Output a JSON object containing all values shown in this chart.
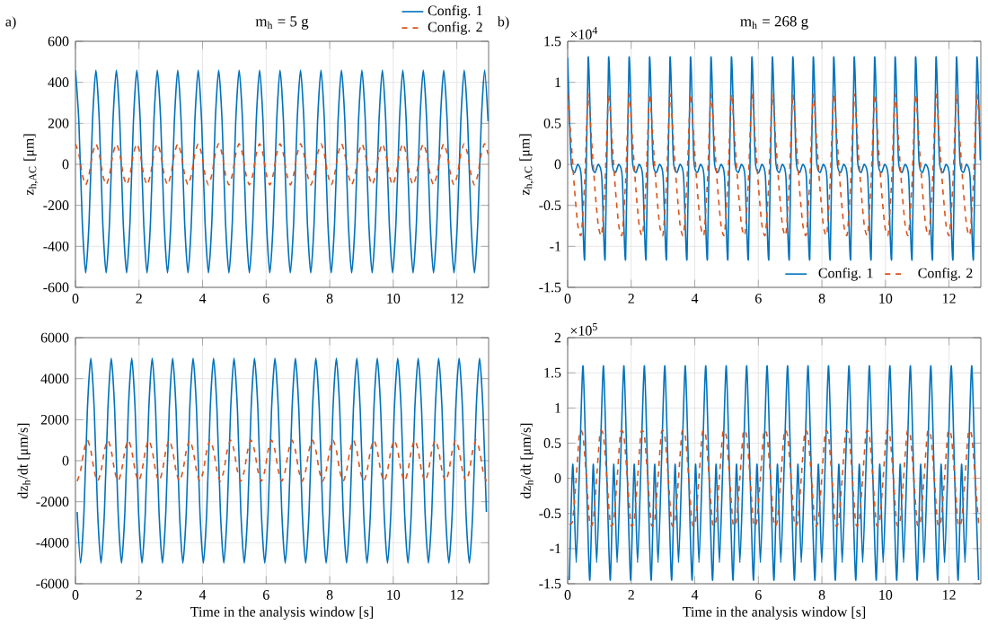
{
  "chart_data": [
    {
      "type": "line",
      "title": "m$_{h}$ = 5 g",
      "ylabel": "z$_{h,AC}$ [μm]",
      "annotations": [
        "a)"
      ],
      "xlim": [
        0,
        13
      ],
      "ylim": [
        -600,
        600
      ],
      "xticks": [
        0,
        2,
        4,
        6,
        8,
        10,
        12
      ],
      "yticks": [
        -600,
        -400,
        -200,
        0,
        200,
        400,
        600
      ],
      "grid": true,
      "legend": "top right",
      "x": [
        0,
        0.107,
        0.215,
        0.322,
        0.429,
        0.537,
        0.644,
        0.751,
        0.858,
        0.966,
        1.073,
        1.18,
        1.288,
        1.395,
        1.502,
        1.61,
        1.717,
        1.824,
        1.931,
        2.039,
        2.146,
        2.253,
        2.361,
        2.468,
        2.575,
        2.683,
        2.79,
        2.897,
        3.004,
        3.112,
        3.219,
        3.326,
        3.434,
        3.541,
        3.648,
        3.756,
        3.863,
        3.97,
        4.077,
        4.185,
        4.292,
        4.399,
        4.507,
        4.614,
        4.721,
        4.829,
        4.936,
        5.043,
        5.15,
        5.258,
        5.365,
        5.472,
        5.58,
        5.687,
        5.794,
        5.902,
        6.009,
        6.116,
        6.223,
        6.331,
        6.438,
        6.545,
        6.653,
        6.76,
        6.867,
        6.975,
        7.082,
        7.189,
        7.296,
        7.404,
        7.511,
        7.618,
        7.726,
        7.833,
        7.94,
        8.048,
        8.155,
        8.262,
        8.369,
        8.477,
        8.584,
        8.691,
        8.799,
        8.906,
        9.013,
        9.121,
        9.228,
        9.335,
        9.442,
        9.55,
        9.657,
        9.764,
        9.872,
        9.979,
        10.086,
        10.194,
        10.301,
        10.408,
        10.515,
        10.623,
        10.73,
        10.837,
        10.945,
        11.052,
        11.159,
        11.267,
        11.374,
        11.481,
        11.588,
        11.696,
        11.803,
        11.91,
        12.018,
        12.125,
        12.232,
        12.34,
        12.447,
        12.554,
        12.661,
        12.769,
        12.876,
        12.983
      ],
      "series": [
        {
          "name": "Config. 1",
          "color": "#0072bd",
          "line_style": "solid",
          "values": [
            460,
            210,
            -280,
            -530,
            -280,
            210,
            460,
            210,
            -280,
            -530,
            -280,
            210,
            460,
            210,
            -280,
            -530,
            -280,
            210,
            460,
            210,
            -280,
            -530,
            -280,
            210,
            460,
            210,
            -280,
            -530,
            -280,
            210,
            460,
            210,
            -280,
            -530,
            -280,
            210,
            460,
            210,
            -280,
            -530,
            -280,
            210,
            460,
            210,
            -280,
            -530,
            -280,
            210,
            460,
            210,
            -280,
            -530,
            -280,
            210,
            460,
            210,
            -280,
            -530,
            -280,
            210,
            460,
            210,
            -280,
            -530,
            -280,
            210,
            460,
            210,
            -280,
            -530,
            -280,
            210,
            460,
            210,
            -280,
            -530,
            -280,
            210,
            460,
            210,
            -280,
            -530,
            -280,
            210,
            460,
            210,
            -280,
            -530,
            -280,
            210,
            460,
            210,
            -280,
            -530,
            -280,
            210,
            460,
            210,
            -280,
            -530,
            -280,
            210,
            460,
            210,
            -280,
            -530,
            -280,
            210,
            460,
            210,
            -280,
            -530,
            -280,
            210,
            460,
            210,
            -280,
            -530,
            -280,
            210,
            460,
            210
          ]
        },
        {
          "name": "Config. 2",
          "color": "#d95319",
          "line_style": "dashed",
          "values": [
            100,
            50,
            -50,
            -100,
            -50,
            50,
            100,
            50,
            -50,
            -100,
            -50,
            50,
            100,
            50,
            -50,
            -100,
            -50,
            50,
            100,
            50,
            -50,
            -100,
            -50,
            50,
            100,
            50,
            -50,
            -100,
            -50,
            50,
            100,
            50,
            -50,
            -100,
            -50,
            50,
            100,
            50,
            -50,
            -100,
            -50,
            50,
            100,
            50,
            -50,
            -100,
            -50,
            50,
            100,
            50,
            -50,
            -100,
            -50,
            50,
            100,
            50,
            -50,
            -100,
            -50,
            50,
            100,
            50,
            -50,
            -100,
            -50,
            50,
            100,
            50,
            -50,
            -100,
            -50,
            50,
            100,
            50,
            -50,
            -100,
            -50,
            50,
            100,
            50,
            -50,
            -100,
            -50,
            50,
            100,
            50,
            -50,
            -100,
            -50,
            50,
            100,
            50,
            -50,
            -100,
            -50,
            50,
            100,
            50,
            -50,
            -100,
            -50,
            50,
            100,
            50,
            -50,
            -100,
            -50,
            50,
            100,
            50,
            -50,
            -100,
            -50,
            50,
            100,
            50,
            -50,
            -100,
            -50,
            50,
            100,
            50
          ]
        }
      ]
    },
    {
      "type": "line",
      "title": "m$_{h}$ = 268 g",
      "ylabel": "z$_{h,AC}$ [μm]",
      "annotations": [
        "b)",
        "×10$^{4}$"
      ],
      "xlim": [
        0,
        13
      ],
      "ylim": [
        -1.5,
        1.5
      ],
      "xticks": [
        0,
        2,
        4,
        6,
        8,
        10,
        12
      ],
      "yticks": [
        -1.5,
        -1,
        -0.5,
        0,
        0.5,
        1,
        1.5
      ],
      "grid": true,
      "legend": "bottom right",
      "x": [
        0,
        0.107,
        0.215,
        0.322,
        0.429,
        0.537,
        0.644,
        0.751,
        0.858,
        0.966,
        1.073,
        1.18,
        1.288,
        1.395,
        1.502,
        1.61,
        1.717,
        1.824,
        1.931,
        2.039,
        2.146,
        2.253,
        2.361,
        2.468,
        2.575,
        2.683,
        2.79,
        2.897,
        3.004,
        3.112,
        3.219,
        3.326,
        3.434,
        3.541,
        3.648,
        3.756,
        3.863,
        3.97,
        4.077,
        4.185,
        4.292,
        4.399,
        4.507,
        4.614,
        4.721,
        4.829,
        4.936,
        5.043,
        5.15,
        5.258,
        5.365,
        5.472,
        5.58,
        5.687,
        5.794,
        5.902,
        6.009,
        6.116,
        6.223,
        6.331,
        6.438,
        6.545,
        6.653,
        6.76,
        6.867,
        6.975,
        7.082,
        7.189,
        7.296,
        7.404,
        7.511,
        7.618,
        7.726,
        7.833,
        7.94,
        8.048,
        8.155,
        8.262,
        8.369,
        8.477,
        8.584,
        8.691,
        8.799,
        8.906,
        9.013,
        9.121,
        9.228,
        9.335,
        9.442,
        9.55,
        9.657,
        9.764,
        9.872,
        9.979,
        10.086,
        10.194,
        10.301,
        10.408,
        10.515,
        10.623,
        10.73,
        10.837,
        10.945,
        11.052,
        11.159,
        11.267,
        11.374,
        11.481,
        11.588,
        11.696,
        11.803,
        11.91,
        12.018,
        12.125,
        12.232,
        12.34,
        12.447,
        12.554,
        12.661,
        12.769,
        12.876,
        12.983
      ],
      "series": [
        {
          "name": "Config. 1",
          "color": "#0072bd",
          "line_style": "solid",
          "values": [
            1.3,
            0.05,
            -0.1,
            0,
            -0.15,
            -1.15,
            1.3,
            0.05,
            -0.1,
            0,
            -0.15,
            -1.15,
            1.3,
            0.05,
            -0.1,
            0,
            -0.15,
            -1.15,
            1.3,
            0.05,
            -0.1,
            0,
            -0.15,
            -1.15,
            1.3,
            0.05,
            -0.1,
            0,
            -0.15,
            -1.15,
            1.3,
            0.05,
            -0.1,
            0,
            -0.15,
            -1.15,
            1.3,
            0.05,
            -0.1,
            0,
            -0.15,
            -1.15,
            1.3,
            0.05,
            -0.1,
            0,
            -0.15,
            -1.15,
            1.3,
            0.05,
            -0.1,
            0,
            -0.15,
            -1.15,
            1.3,
            0.05,
            -0.1,
            0,
            -0.15,
            -1.15,
            1.3,
            0.05,
            -0.1,
            0,
            -0.15,
            -1.15,
            1.3,
            0.05,
            -0.1,
            0,
            -0.15,
            -1.15,
            1.3,
            0.05,
            -0.1,
            0,
            -0.15,
            -1.15,
            1.3,
            0.05,
            -0.1,
            0,
            -0.15,
            -1.15,
            1.3,
            0.05,
            -0.1,
            0,
            -0.15,
            -1.15,
            1.3,
            0.05,
            -0.1,
            0,
            -0.15,
            -1.15,
            1.3,
            0.05,
            -0.1,
            0,
            -0.15,
            -1.15,
            1.3,
            0.05,
            -0.1,
            0,
            -0.15,
            -1.15,
            1.3,
            0.05,
            -0.1,
            0,
            -0.15,
            -1.15,
            1.3,
            0.05,
            -0.1,
            0,
            -0.15,
            -1.15,
            1.3,
            0.05
          ]
        },
        {
          "name": "Config. 2",
          "color": "#d95319",
          "line_style": "dashed",
          "values": [
            0.85,
            0.3,
            -0.3,
            -0.75,
            -0.85,
            -0.2,
            0.85,
            0.3,
            -0.3,
            -0.75,
            -0.85,
            -0.2,
            0.85,
            0.3,
            -0.3,
            -0.75,
            -0.85,
            -0.2,
            0.85,
            0.3,
            -0.3,
            -0.75,
            -0.85,
            -0.2,
            0.85,
            0.3,
            -0.3,
            -0.75,
            -0.85,
            -0.2,
            0.85,
            0.3,
            -0.3,
            -0.75,
            -0.85,
            -0.2,
            0.85,
            0.3,
            -0.3,
            -0.75,
            -0.85,
            -0.2,
            0.85,
            0.3,
            -0.3,
            -0.75,
            -0.85,
            -0.2,
            0.85,
            0.3,
            -0.3,
            -0.75,
            -0.85,
            -0.2,
            0.85,
            0.3,
            -0.3,
            -0.75,
            -0.85,
            -0.2,
            0.85,
            0.3,
            -0.3,
            -0.75,
            -0.85,
            -0.2,
            0.85,
            0.3,
            -0.3,
            -0.75,
            -0.85,
            -0.2,
            0.85,
            0.3,
            -0.3,
            -0.75,
            -0.85,
            -0.2,
            0.85,
            0.3,
            -0.3,
            -0.75,
            -0.85,
            -0.2,
            0.85,
            0.3,
            -0.3,
            -0.75,
            -0.85,
            -0.2,
            0.85,
            0.3,
            -0.3,
            -0.75,
            -0.85,
            -0.2,
            0.85,
            0.3,
            -0.3,
            -0.75,
            -0.85,
            -0.2,
            0.85,
            0.3,
            -0.3,
            -0.75,
            -0.85,
            -0.2,
            0.85,
            0.3,
            -0.3,
            -0.75,
            -0.85,
            -0.2,
            0.85,
            0.3,
            -0.3,
            -0.75,
            -0.85,
            -0.2,
            0.85,
            0.3
          ]
        }
      ]
    },
    {
      "type": "line",
      "xlabel": "Time in the analysis window [s]",
      "ylabel": "dz$_{h}$/dt [μm/s]",
      "xlim": [
        0,
        13
      ],
      "ylim": [
        -6000,
        6000
      ],
      "xticks": [
        0,
        2,
        4,
        6,
        8,
        10,
        12
      ],
      "yticks": [
        -6000,
        -4000,
        -2000,
        0,
        2000,
        4000,
        6000
      ],
      "grid": true,
      "x": [
        0.054,
        0.161,
        0.269,
        0.376,
        0.483,
        0.591,
        0.698,
        0.805,
        0.912,
        1.02,
        1.127,
        1.234,
        1.342,
        1.449,
        1.556,
        1.664,
        1.771,
        1.878,
        1.985,
        2.093,
        2.2,
        2.307,
        2.415,
        2.522,
        2.629,
        2.737,
        2.844,
        2.951,
        3.058,
        3.166,
        3.273,
        3.38,
        3.488,
        3.595,
        3.702,
        3.81,
        3.917,
        4.024,
        4.131,
        4.239,
        4.346,
        4.453,
        4.561,
        4.668,
        4.775,
        4.883,
        4.99,
        5.097,
        5.204,
        5.312,
        5.419,
        5.526,
        5.634,
        5.741,
        5.848,
        5.956,
        6.063,
        6.17,
        6.277,
        6.385,
        6.492,
        6.599,
        6.707,
        6.814,
        6.921,
        7.029,
        7.136,
        7.243,
        7.35,
        7.458,
        7.565,
        7.672,
        7.78,
        7.887,
        7.994,
        8.102,
        8.209,
        8.316,
        8.423,
        8.531,
        8.638,
        8.745,
        8.853,
        8.96,
        9.067,
        9.175,
        9.282,
        9.389,
        9.496,
        9.604,
        9.711,
        9.818,
        9.926,
        10.033,
        10.14,
        10.248,
        10.355,
        10.462,
        10.569,
        10.677,
        10.784,
        10.891,
        10.999,
        11.106,
        11.213,
        11.321,
        11.428,
        11.535,
        11.642,
        11.75,
        11.857,
        11.964,
        12.072,
        12.179,
        12.286,
        12.394,
        12.501,
        12.608,
        12.715,
        12.823,
        12.93
      ],
      "series": [
        {
          "color": "#0072bd",
          "line_style": "solid",
          "values": [
            -2500,
            -5000,
            -2500,
            2500,
            5000,
            2500,
            -2500,
            -5000,
            -2500,
            2500,
            5000,
            2500,
            -2500,
            -5000,
            -2500,
            2500,
            5000,
            2500,
            -2500,
            -5000,
            -2500,
            2500,
            5000,
            2500,
            -2500,
            -5000,
            -2500,
            2500,
            5000,
            2500,
            -2500,
            -5000,
            -2500,
            2500,
            5000,
            2500,
            -2500,
            -5000,
            -2500,
            2500,
            5000,
            2500,
            -2500,
            -5000,
            -2500,
            2500,
            5000,
            2500,
            -2500,
            -5000,
            -2500,
            2500,
            5000,
            2500,
            -2500,
            -5000,
            -2500,
            2500,
            5000,
            2500,
            -2500,
            -5000,
            -2500,
            2500,
            5000,
            2500,
            -2500,
            -5000,
            -2500,
            2500,
            5000,
            2500,
            -2500,
            -5000,
            -2500,
            2500,
            5000,
            2500,
            -2500,
            -5000,
            -2500,
            2500,
            5000,
            2500,
            -2500,
            -5000,
            -2500,
            2500,
            5000,
            2500,
            -2500,
            -5000,
            -2500,
            2500,
            5000,
            2500,
            -2500,
            -5000,
            -2500,
            2500,
            5000,
            2500,
            -2500,
            -5000,
            -2500,
            2500,
            5000,
            2500,
            -2500,
            -5000,
            -2500,
            2500,
            5000,
            2500,
            -2500,
            -5000,
            -2500,
            2500,
            5000,
            2500,
            -2500
          ]
        },
        {
          "color": "#d95319",
          "line_style": "dashed",
          "values": [
            -1000,
            -500,
            500,
            1000,
            500,
            -500,
            -1000,
            -500,
            500,
            1000,
            500,
            -500,
            -1000,
            -500,
            500,
            1000,
            500,
            -500,
            -1000,
            -500,
            500,
            1000,
            500,
            -500,
            -1000,
            -500,
            500,
            1000,
            500,
            -500,
            -1000,
            -500,
            500,
            1000,
            500,
            -500,
            -1000,
            -500,
            500,
            1000,
            500,
            -500,
            -1000,
            -500,
            500,
            1000,
            500,
            -500,
            -1000,
            -500,
            500,
            1000,
            500,
            -500,
            -1000,
            -500,
            500,
            1000,
            500,
            -500,
            -1000,
            -500,
            500,
            1000,
            500,
            -500,
            -1000,
            -500,
            500,
            1000,
            500,
            -500,
            -1000,
            -500,
            500,
            1000,
            500,
            -500,
            -1000,
            -500,
            500,
            1000,
            500,
            -500,
            -1000,
            -500,
            500,
            1000,
            500,
            -500,
            -1000,
            -500,
            500,
            1000,
            500,
            -500,
            -1000,
            -500,
            500,
            1000,
            500,
            -500,
            -1000,
            -500,
            500,
            1000,
            500,
            -500,
            -1000,
            -500,
            500,
            1000,
            500,
            -500,
            -1000,
            -500,
            500,
            1000,
            500,
            -500,
            -1000
          ]
        }
      ]
    },
    {
      "type": "line",
      "xlabel": "Time in the analysis window [s]",
      "ylabel": "dz$_{h}$/dt [μm/s]",
      "annotations": [
        "×10$^{5}$"
      ],
      "xlim": [
        0,
        13
      ],
      "ylim": [
        -1.5,
        2
      ],
      "xticks": [
        0,
        2,
        4,
        6,
        8,
        10,
        12
      ],
      "yticks": [
        -1.5,
        -1,
        -0.5,
        0,
        0.5,
        1,
        1.5,
        2
      ],
      "grid": true,
      "x": [
        0.054,
        0.161,
        0.269,
        0.376,
        0.483,
        0.591,
        0.698,
        0.805,
        0.912,
        1.02,
        1.127,
        1.234,
        1.342,
        1.449,
        1.556,
        1.664,
        1.771,
        1.878,
        1.985,
        2.093,
        2.2,
        2.307,
        2.415,
        2.522,
        2.629,
        2.737,
        2.844,
        2.951,
        3.058,
        3.166,
        3.273,
        3.38,
        3.488,
        3.595,
        3.702,
        3.81,
        3.917,
        4.024,
        4.131,
        4.239,
        4.346,
        4.453,
        4.561,
        4.668,
        4.775,
        4.883,
        4.99,
        5.097,
        5.204,
        5.312,
        5.419,
        5.526,
        5.634,
        5.741,
        5.848,
        5.956,
        6.063,
        6.17,
        6.277,
        6.385,
        6.492,
        6.599,
        6.707,
        6.814,
        6.921,
        7.029,
        7.136,
        7.243,
        7.35,
        7.458,
        7.565,
        7.672,
        7.78,
        7.887,
        7.994,
        8.102,
        8.209,
        8.316,
        8.423,
        8.531,
        8.638,
        8.745,
        8.853,
        8.96,
        9.067,
        9.175,
        9.282,
        9.389,
        9.496,
        9.604,
        9.711,
        9.818,
        9.926,
        10.033,
        10.14,
        10.248,
        10.355,
        10.462,
        10.569,
        10.677,
        10.784,
        10.891,
        10.999,
        11.106,
        11.213,
        11.321,
        11.428,
        11.535,
        11.642,
        11.75,
        11.857,
        11.964,
        12.072,
        12.179,
        12.286,
        12.394,
        12.501,
        12.608,
        12.715,
        12.823,
        12.93
      ],
      "series": [
        {
          "color": "#0072bd",
          "line_style": "solid",
          "values": [
            -1.45,
            0.2,
            -1.2,
            0.2,
            1.6,
            0,
            -1.45,
            0.2,
            -1.2,
            0.2,
            1.6,
            0,
            -1.45,
            0.2,
            -1.2,
            0.2,
            1.6,
            0,
            -1.45,
            0.2,
            -1.2,
            0.2,
            1.6,
            0,
            -1.45,
            0.2,
            -1.2,
            0.2,
            1.6,
            0,
            -1.45,
            0.2,
            -1.2,
            0.2,
            1.6,
            0,
            -1.45,
            0.2,
            -1.2,
            0.2,
            1.6,
            0,
            -1.45,
            0.2,
            -1.2,
            0.2,
            1.6,
            0,
            -1.45,
            0.2,
            -1.2,
            0.2,
            1.6,
            0,
            -1.45,
            0.2,
            -1.2,
            0.2,
            1.6,
            0,
            -1.45,
            0.2,
            -1.2,
            0.2,
            1.6,
            0,
            -1.45,
            0.2,
            -1.2,
            0.2,
            1.6,
            0,
            -1.45,
            0.2,
            -1.2,
            0.2,
            1.6,
            0,
            -1.45,
            0.2,
            -1.2,
            0.2,
            1.6,
            0,
            -1.45,
            0.2,
            -1.2,
            0.2,
            1.6,
            0,
            -1.45,
            0.2,
            -1.2,
            0.2,
            1.6,
            0,
            -1.45,
            0.2,
            -1.2,
            0.2,
            1.6,
            0,
            -1.45,
            0.2,
            -1.2,
            0.2,
            1.6,
            0,
            -1.45,
            0.2,
            -1.2,
            0.2,
            1.6,
            0,
            -1.45,
            0.2,
            -1.2,
            0.2,
            1.6,
            0,
            -1.45
          ]
        },
        {
          "color": "#d95319",
          "line_style": "dashed",
          "values": [
            -0.65,
            -0.6,
            0,
            0.65,
            0.6,
            0,
            -0.65,
            -0.6,
            0,
            0.65,
            0.6,
            0,
            -0.65,
            -0.6,
            0,
            0.65,
            0.6,
            0,
            -0.65,
            -0.6,
            0,
            0.65,
            0.6,
            0,
            -0.65,
            -0.6,
            0,
            0.65,
            0.6,
            0,
            -0.65,
            -0.6,
            0,
            0.65,
            0.6,
            0,
            -0.65,
            -0.6,
            0,
            0.65,
            0.6,
            0,
            -0.65,
            -0.6,
            0,
            0.65,
            0.6,
            0,
            -0.65,
            -0.6,
            0,
            0.65,
            0.6,
            0,
            -0.65,
            -0.6,
            0,
            0.65,
            0.6,
            0,
            -0.65,
            -0.6,
            0,
            0.65,
            0.6,
            0,
            -0.65,
            -0.6,
            0,
            0.65,
            0.6,
            0,
            -0.65,
            -0.6,
            0,
            0.65,
            0.6,
            0,
            -0.65,
            -0.6,
            0,
            0.65,
            0.6,
            0,
            -0.65,
            -0.6,
            0,
            0.65,
            0.6,
            0,
            -0.65,
            -0.6,
            0,
            0.65,
            0.6,
            0,
            -0.65,
            -0.6,
            0,
            0.65,
            0.6,
            0,
            -0.65,
            -0.6,
            0,
            0.65,
            0.6,
            0,
            -0.65,
            -0.6,
            0,
            0.65,
            0.6,
            0,
            -0.65,
            -0.6,
            0,
            0.65,
            0.6,
            0,
            -0.65
          ]
        }
      ]
    }
  ]
}
